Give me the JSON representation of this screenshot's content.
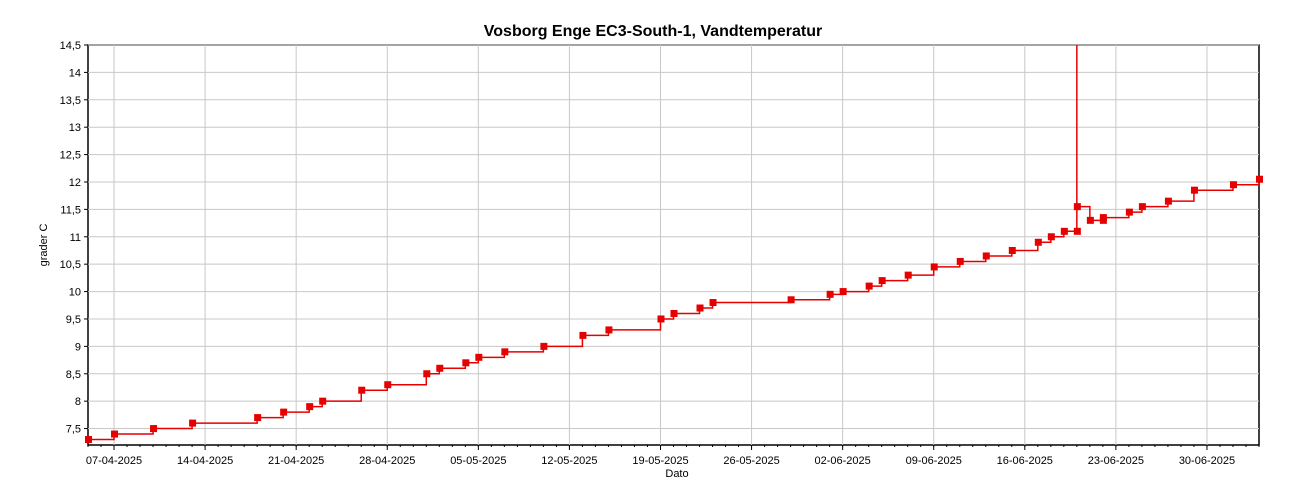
{
  "chart_data": {
    "type": "line",
    "title": "Vosborg Enge EC3-South-1, Vandtemperatur",
    "xlabel": "Dato",
    "ylabel": "grader C",
    "x_ticks": [
      "07-04-2025",
      "14-04-2025",
      "21-04-2025",
      "28-04-2025",
      "05-05-2025",
      "12-05-2025",
      "19-05-2025",
      "26-05-2025",
      "02-06-2025",
      "09-06-2025",
      "16-06-2025",
      "23-06-2025",
      "30-06-2025"
    ],
    "y_ticks": [
      "7,5",
      "8",
      "8,5",
      "9",
      "9,5",
      "10",
      "10,5",
      "11",
      "11,5",
      "12",
      "12,5",
      "13",
      "13,5",
      "14",
      "14,5"
    ],
    "xlim": [
      "2025-04-05",
      "2025-07-04"
    ],
    "ylim": [
      7.2,
      14.5
    ],
    "grid": true,
    "line_color": "#e60000",
    "series": [
      {
        "x": [
          "2025-04-05",
          "2025-04-07",
          "2025-04-10",
          "2025-04-13",
          "2025-04-18",
          "2025-04-20",
          "2025-04-22",
          "2025-04-23",
          "2025-04-26",
          "2025-04-28",
          "2025-05-01",
          "2025-05-02",
          "2025-05-04",
          "2025-05-05",
          "2025-05-07",
          "2025-05-10",
          "2025-05-13",
          "2025-05-15",
          "2025-05-19",
          "2025-05-20",
          "2025-05-22",
          "2025-05-23",
          "2025-05-29",
          "2025-06-01",
          "2025-06-02",
          "2025-06-04",
          "2025-06-05",
          "2025-06-07",
          "2025-06-09",
          "2025-06-11",
          "2025-06-13",
          "2025-06-15",
          "2025-06-17",
          "2025-06-18",
          "2025-06-19",
          "2025-06-20",
          "2025-06-20",
          "2025-06-20",
          "2025-06-21",
          "2025-06-22",
          "2025-06-22",
          "2025-06-24",
          "2025-06-25",
          "2025-06-27",
          "2025-06-29",
          "2025-07-02",
          "2025-07-04"
        ],
        "y": [
          7.3,
          7.4,
          7.5,
          7.6,
          7.7,
          7.8,
          7.9,
          8.0,
          8.2,
          8.3,
          8.5,
          8.6,
          8.7,
          8.8,
          8.9,
          9.0,
          9.2,
          9.3,
          9.5,
          9.6,
          9.7,
          9.8,
          9.85,
          9.95,
          10.0,
          10.1,
          10.2,
          10.3,
          10.45,
          10.55,
          10.65,
          10.75,
          10.9,
          11.0,
          11.1,
          11.1,
          14.5,
          11.55,
          11.3,
          11.3,
          11.35,
          11.45,
          11.55,
          11.65,
          11.85,
          11.95,
          12.05
        ]
      }
    ]
  }
}
